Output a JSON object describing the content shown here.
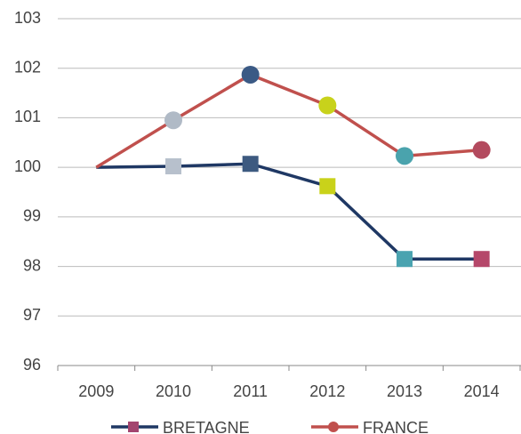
{
  "chart_data": {
    "type": "line",
    "categories": [
      "2009",
      "2010",
      "2011",
      "2012",
      "2013",
      "2014"
    ],
    "series": [
      {
        "name": "BRETAGNE",
        "color": "#1f3864",
        "marker": "square",
        "legend_color": "#a3456f",
        "values": [
          100,
          100.02,
          100.07,
          99.62,
          98.15,
          98.15
        ],
        "marker_colors": [
          null,
          "#b7c0cc",
          "#3d5a80",
          "#c9d21a",
          "#4aa3b0",
          "#b5476a"
        ]
      },
      {
        "name": "FRANCE",
        "color": "#c0504d",
        "marker": "circle",
        "legend_color": "#c0504d",
        "values": [
          100,
          100.95,
          101.87,
          101.25,
          100.23,
          100.35
        ],
        "marker_colors": [
          null,
          "#b0bac6",
          "#3b5a85",
          "#c8d21b",
          "#4aa3ad",
          "#b34a5e"
        ]
      }
    ],
    "ylim": [
      96,
      103
    ],
    "yticks": [
      96,
      97,
      98,
      99,
      100,
      101,
      102,
      103
    ],
    "grid": true,
    "legend": "bottom"
  }
}
